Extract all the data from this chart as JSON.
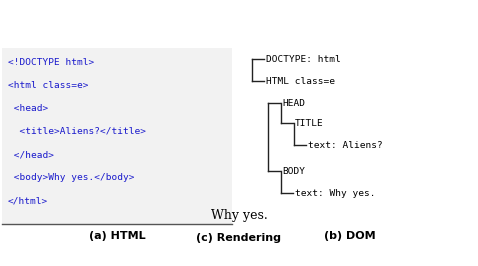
{
  "html_lines": [
    "<!DOCTYPE html>",
    "<html class=e>",
    " <head>",
    "  <title>Aliens?</title>",
    " </head>",
    " <body>Why yes.</body>",
    "</html>"
  ],
  "html_color": "#1a1acc",
  "label_a": "(a) HTML",
  "label_b": "(b) DOM",
  "label_c": "(c) Rendering",
  "rendering_text": "Why yes.",
  "panel_a_bg": "#f2f2f2",
  "panel_a_border": "#555555"
}
